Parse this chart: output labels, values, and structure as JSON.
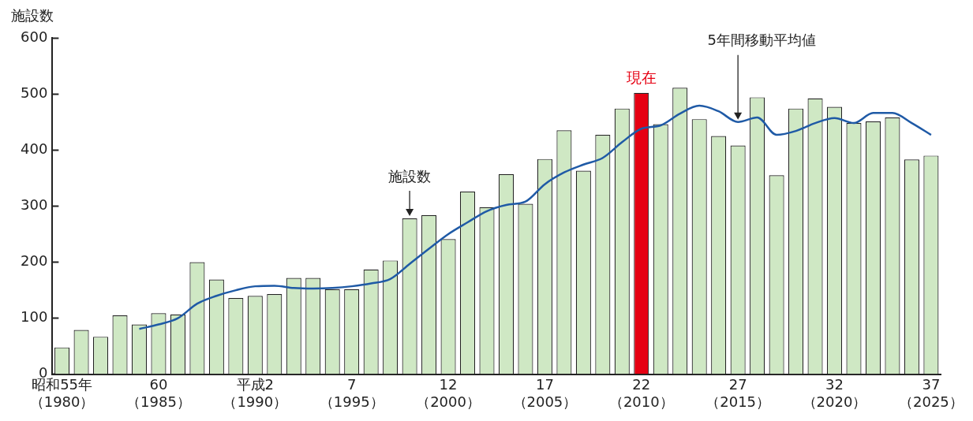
{
  "chart_data": {
    "type": "bar",
    "ylabel": "施設数",
    "categories": [
      "昭和55年（1980）",
      null,
      null,
      null,
      null,
      "60（1985）",
      null,
      null,
      null,
      null,
      "平成2（1990）",
      null,
      null,
      null,
      null,
      "7（1995）",
      null,
      null,
      null,
      null,
      "12（2000）",
      null,
      null,
      null,
      null,
      "17（2005）",
      null,
      null,
      null,
      null,
      "22（2010）",
      null,
      null,
      null,
      null,
      "27（2015）",
      null,
      null,
      null,
      null,
      "32（2020）",
      null,
      null,
      null,
      null,
      "37（2025）"
    ],
    "series": [
      {
        "name": "施設数",
        "colors": [
          "#cfe8c4",
          "#cfe8c4",
          "#cfe8c4",
          "#cfe8c4",
          "#cfe8c4",
          "#cfe8c4",
          "#cfe8c4",
          "#cfe8c4",
          "#cfe8c4",
          "#cfe8c4",
          "#cfe8c4",
          "#cfe8c4",
          "#cfe8c4",
          "#cfe8c4",
          "#cfe8c4",
          "#cfe8c4",
          "#cfe8c4",
          "#cfe8c4",
          "#cfe8c4",
          "#cfe8c4",
          "#cfe8c4",
          "#cfe8c4",
          "#cfe8c4",
          "#cfe8c4",
          "#cfe8c4",
          "#cfe8c4",
          "#cfe8c4",
          "#cfe8c4",
          "#cfe8c4",
          "#cfe8c4",
          "#e60012",
          "#cfe8c4",
          "#cfe8c4",
          "#cfe8c4",
          "#cfe8c4",
          "#cfe8c4",
          "#cfe8c4",
          "#cfe8c4",
          "#cfe8c4",
          "#cfe8c4",
          "#cfe8c4",
          "#cfe8c4",
          "#cfe8c4",
          "#cfe8c4",
          "#cfe8c4",
          "#cfe8c4"
        ],
        "values": [
          48,
          79,
          67,
          105,
          89,
          109,
          107,
          200,
          169,
          136,
          140,
          143,
          172,
          172,
          152,
          152,
          187,
          203,
          278,
          284,
          241,
          326,
          298,
          357,
          304,
          384,
          435,
          363,
          427,
          474,
          502,
          446,
          511,
          455,
          425,
          408,
          494,
          355,
          474,
          492,
          477,
          448,
          451,
          458,
          383,
          390
        ]
      },
      {
        "type": "line",
        "name": "5年間移動平均値",
        "color": "#1f5aa6",
        "values": [
          null,
          null,
          null,
          null,
          81,
          89,
          100,
          126,
          140,
          150,
          157,
          158,
          154,
          153,
          154,
          157,
          162,
          170,
          197,
          224,
          250,
          271,
          291,
          302,
          308,
          339,
          360,
          374,
          386,
          414,
          438,
          444,
          465,
          479,
          469,
          450,
          458,
          427,
          434,
          448,
          457,
          448,
          466,
          466,
          448,
          427
        ]
      }
    ],
    "annotations": [
      {
        "text": "現在",
        "x": "22（2010）",
        "y": 502
      }
    ],
    "ylim": [
      0,
      600
    ],
    "yticks": [
      0,
      100,
      200,
      300,
      400,
      500,
      600
    ],
    "grid": false,
    "legend": false,
    "marker": "none",
    "line_style": "solid"
  }
}
